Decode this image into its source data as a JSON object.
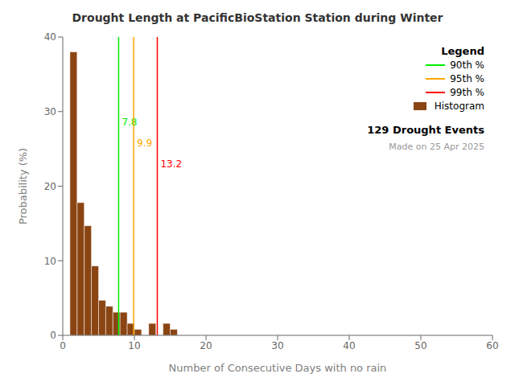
{
  "chart_data": {
    "type": "histogram",
    "title": "Drought Length at PacificBioStation Station during Winter",
    "x_label": "Number of Consecutive Days with no rain",
    "y_label": "Probability (%)",
    "bins": [
      1,
      2,
      3,
      4,
      5,
      6,
      7,
      8,
      9,
      10,
      11,
      12,
      13,
      14,
      15,
      16,
      17,
      18,
      19,
      20,
      21
    ],
    "series": [
      {
        "name": "Histogram",
        "color": "#8B4513",
        "values": [
          38.0,
          17.8,
          14.7,
          9.3,
          4.7,
          3.9,
          3.1,
          3.1,
          1.6,
          0.8,
          0.0,
          1.6,
          0.0,
          1.6,
          0.8,
          0.0,
          0.0,
          0.0,
          0.0,
          0.0
        ]
      }
    ],
    "vlines": [
      {
        "name": "90th %",
        "value": 7.8,
        "color": "#00EE00"
      },
      {
        "name": "95th %",
        "value": 9.9,
        "color": "#FFA500"
      },
      {
        "name": "99th %",
        "value": 13.2,
        "color": "#FF0000"
      }
    ],
    "xlim": [
      0,
      60
    ],
    "ylim": [
      0,
      40
    ],
    "xticks": [
      0,
      10,
      20,
      30,
      40,
      50,
      60
    ],
    "yticks": [
      0,
      10,
      20,
      30,
      40
    ],
    "grid": false,
    "legend": "upper right",
    "legend_title": "Legend",
    "annotations": [
      "129 Drought Events",
      "Made on 25 Apr 2025"
    ]
  }
}
